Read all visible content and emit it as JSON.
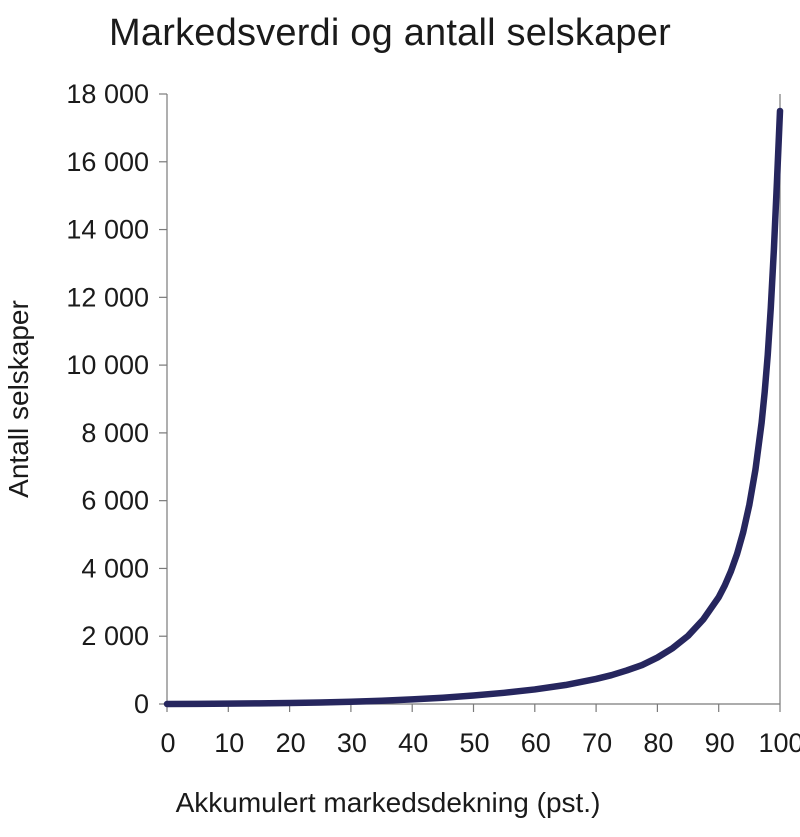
{
  "chart_data": {
    "type": "line",
    "title": "Markedsverdi og antall selskaper",
    "xlabel": "Akkumulert markedsdekning (pst.)",
    "ylabel": "Antall selskaper",
    "xlim": [
      0,
      100
    ],
    "ylim": [
      0,
      18000
    ],
    "x_ticks": [
      0,
      10,
      20,
      30,
      40,
      50,
      60,
      70,
      80,
      90,
      100
    ],
    "x_tick_labels": [
      "0",
      "10",
      "20",
      "30",
      "40",
      "50",
      "60",
      "70",
      "80",
      "90",
      "100"
    ],
    "y_ticks": [
      0,
      2000,
      4000,
      6000,
      8000,
      10000,
      12000,
      14000,
      16000,
      18000
    ],
    "y_tick_labels": [
      "0",
      "2 000",
      "4 000",
      "6 000",
      "8 000",
      "10 000",
      "12 000",
      "14 000",
      "16 000",
      "18 000"
    ],
    "grid": false,
    "legend": "none",
    "series": [
      {
        "color": "#26265e",
        "x": [
          0,
          5,
          10,
          15,
          20,
          25,
          30,
          35,
          40,
          45,
          50,
          55,
          60,
          65,
          70,
          72.5,
          75,
          77.5,
          80,
          82.5,
          85,
          87.5,
          90,
          91,
          92,
          93,
          94,
          95,
          96,
          97,
          97.5,
          98,
          98.5,
          99,
          99.5,
          100
        ],
        "y": [
          0,
          5,
          12,
          20,
          30,
          45,
          65,
          95,
          135,
          185,
          250,
          330,
          430,
          560,
          740,
          850,
          990,
          1150,
          1370,
          1650,
          2010,
          2500,
          3150,
          3500,
          3920,
          4430,
          5070,
          5880,
          6920,
          8300,
          9200,
          10300,
          11700,
          13400,
          15400,
          17500
        ]
      }
    ]
  }
}
